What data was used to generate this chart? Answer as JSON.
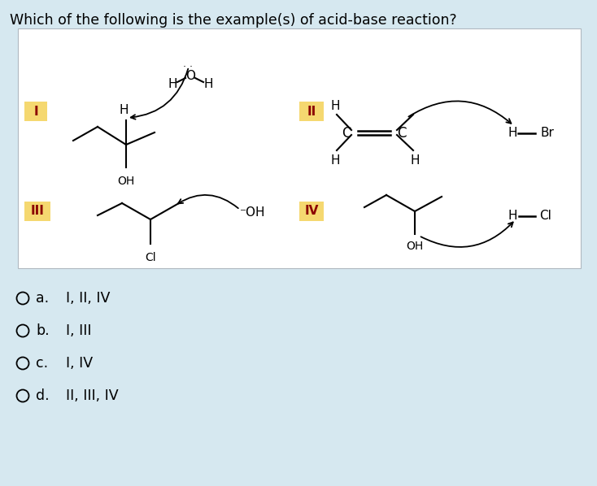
{
  "title": "Which of the following is the example(s) of acid-base reaction?",
  "bg_color": "#d6e8f0",
  "box_bg": "#ffffff",
  "label_bg": "#f5d870",
  "answer_options": [
    "a.   I, II, IV",
    "b.   I, III",
    "c.   I, IV",
    "d.   II, III, IV"
  ],
  "title_fontsize": 12.5,
  "answer_fontsize": 12.5
}
